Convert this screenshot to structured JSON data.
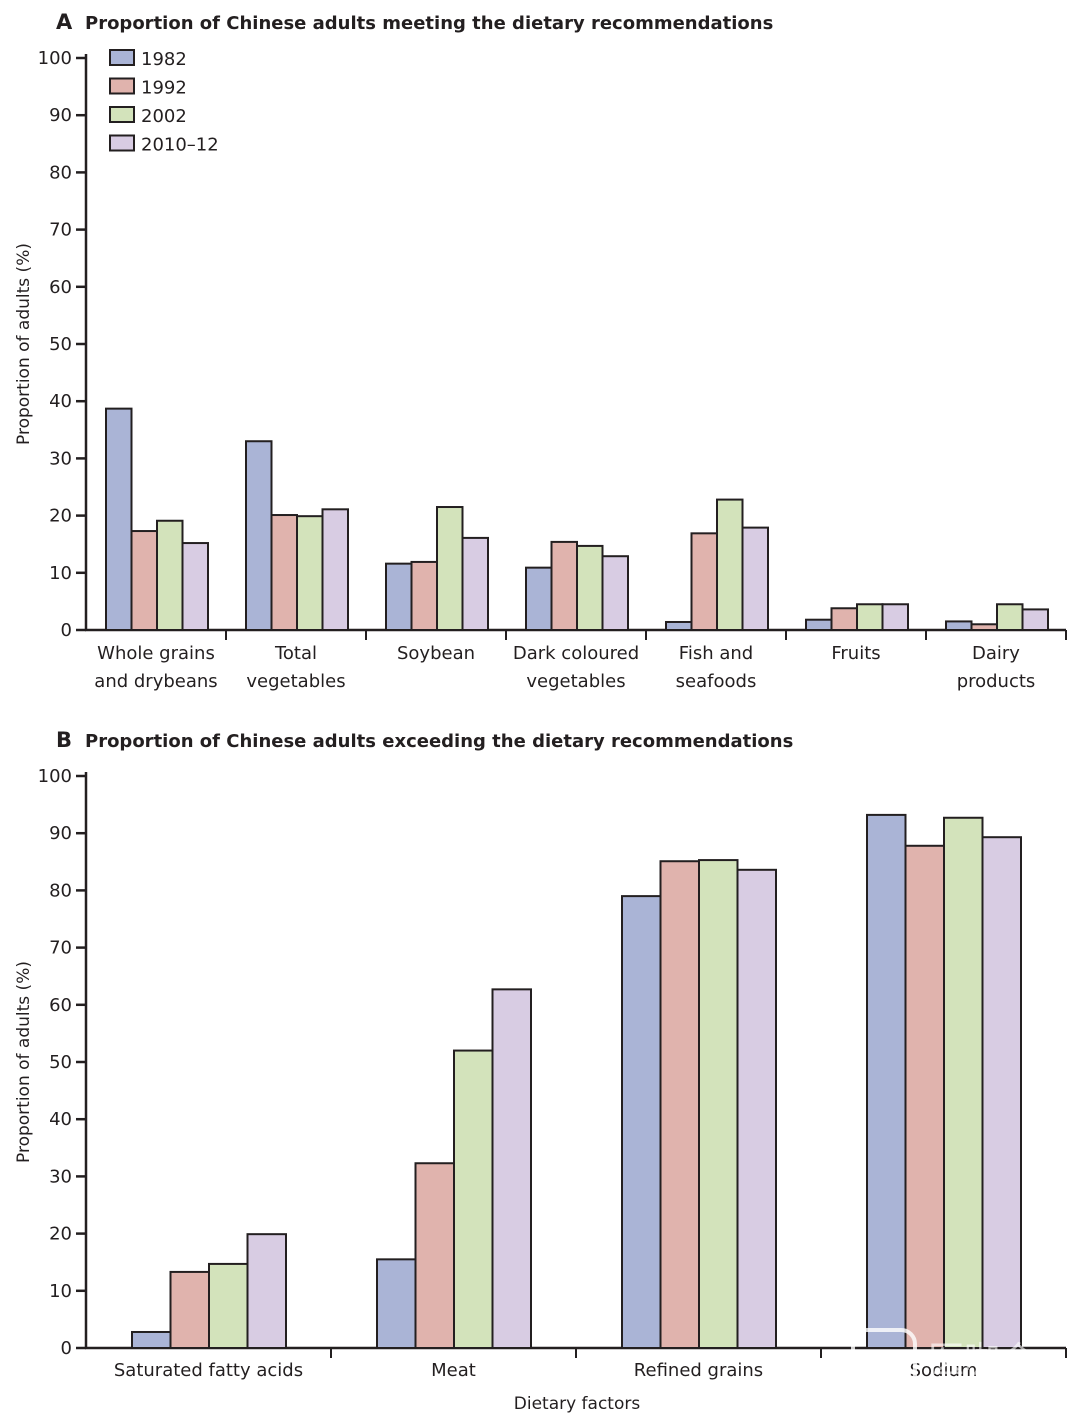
{
  "figure": {
    "watermark": "医咖会"
  },
  "series_colors": {
    "1982": "#aab4d6",
    "1992": "#e0b3ad",
    "2002": "#d3e3bb",
    "2010–12": "#d8cce3"
  },
  "chart_data": [
    {
      "type": "bar",
      "panel": "A",
      "title": "Proportion of Chinese adults meeting the dietary recommendations",
      "xlabel": "",
      "ylabel": "Proportion of adults (%)",
      "ylim": [
        0,
        100
      ],
      "yticks": [
        0,
        10,
        20,
        30,
        40,
        50,
        60,
        70,
        80,
        90,
        100
      ],
      "grid": false,
      "legend": {
        "placement": "top-left",
        "entries": [
          "1982",
          "1992",
          "2002",
          "2010–12"
        ]
      },
      "categories": [
        [
          "Whole grains",
          "and drybeans"
        ],
        [
          "Total",
          "vegetables"
        ],
        [
          "Soybean"
        ],
        [
          "Dark coloured",
          "vegetables"
        ],
        [
          "Fish and",
          "seafoods"
        ],
        [
          "Fruits"
        ],
        [
          "Dairy",
          "products"
        ]
      ],
      "series": [
        {
          "name": "1982",
          "values": [
            38.7,
            33.0,
            11.6,
            10.9,
            1.4,
            1.8,
            1.5
          ]
        },
        {
          "name": "1992",
          "values": [
            17.3,
            20.1,
            11.9,
            15.4,
            16.9,
            3.8,
            1.0
          ]
        },
        {
          "name": "2002",
          "values": [
            19.1,
            19.9,
            21.5,
            14.7,
            22.8,
            4.5,
            4.5
          ]
        },
        {
          "name": "2010–12",
          "values": [
            15.2,
            21.1,
            16.1,
            12.9,
            17.9,
            4.5,
            3.6
          ]
        }
      ]
    },
    {
      "type": "bar",
      "panel": "B",
      "title": "Proportion of Chinese adults exceeding the dietary recommendations",
      "xlabel": "Dietary factors",
      "ylabel": "Proportion of adults (%)",
      "ylim": [
        0,
        100
      ],
      "yticks": [
        0,
        10,
        20,
        30,
        40,
        50,
        60,
        70,
        80,
        90,
        100
      ],
      "grid": false,
      "categories": [
        [
          "Saturated fatty acids"
        ],
        [
          "Meat"
        ],
        [
          "Refined grains"
        ],
        [
          "Sodium"
        ]
      ],
      "series": [
        {
          "name": "1982",
          "values": [
            2.8,
            15.5,
            79.0,
            93.2
          ]
        },
        {
          "name": "1992",
          "values": [
            13.3,
            32.3,
            85.1,
            87.8
          ]
        },
        {
          "name": "2002",
          "values": [
            14.7,
            52.0,
            85.3,
            92.7
          ]
        },
        {
          "name": "2010–12",
          "values": [
            19.9,
            62.7,
            83.6,
            89.3
          ]
        }
      ]
    }
  ]
}
